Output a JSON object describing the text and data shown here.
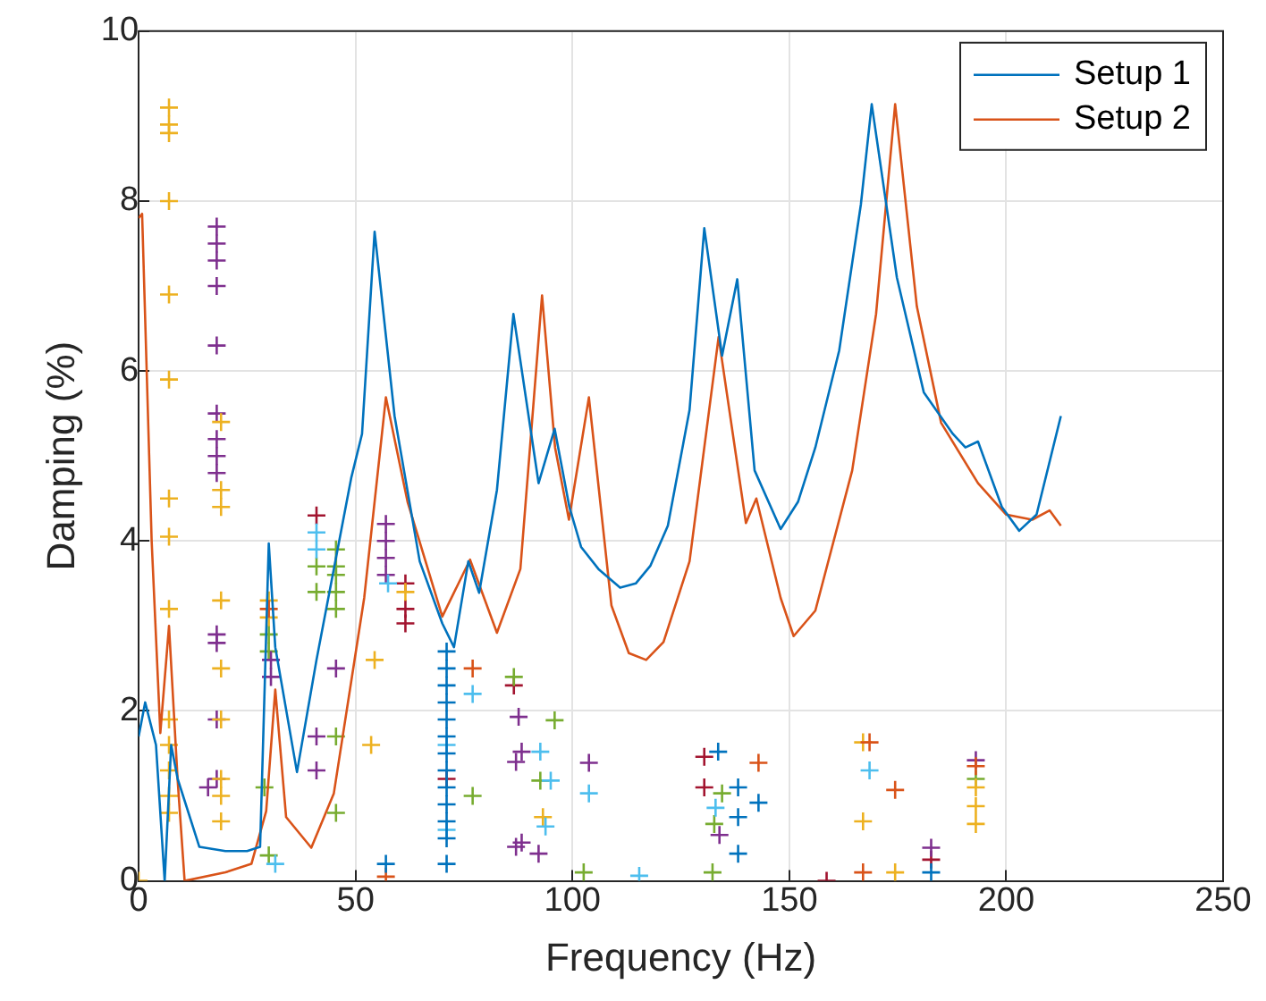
{
  "chart_data": {
    "type": "line",
    "xlabel": "Frequency (Hz)",
    "ylabel": "Damping (%)",
    "xlim": [
      0,
      250
    ],
    "xticks": [
      0,
      50,
      100,
      150,
      200,
      250
    ],
    "ylim": [
      0,
      10
    ],
    "yticks": [
      0,
      2,
      4,
      6,
      8,
      10
    ],
    "grid": true,
    "legend": "top right",
    "line_style": "solid",
    "series": [
      {
        "type": "scatter",
        "marker": "cross",
        "color": "#0072bd",
        "x": [
          71,
          71,
          71,
          71,
          71,
          71,
          71,
          71,
          71,
          71,
          71,
          71,
          71,
          57,
          133.6,
          138.2,
          138.2,
          138.2,
          142.9,
          182.7
        ],
        "values": [
          2.7,
          2.5,
          2.3,
          2.1,
          1.9,
          1.7,
          1.5,
          1.3,
          1.1,
          0.9,
          0.7,
          0.5,
          0.2,
          0.2,
          1.52,
          1.1,
          0.75,
          0.32,
          0.92,
          0.1
        ]
      },
      {
        "type": "scatter",
        "marker": "cross",
        "color": "#4dbeee",
        "x": [
          31.5,
          41,
          41,
          57.5,
          77,
          92.6,
          95,
          93.8,
          103.8,
          115.4,
          133,
          168.5,
          71,
          71
        ],
        "values": [
          0.2,
          4.1,
          3.9,
          3.5,
          2.2,
          1.52,
          1.18,
          0.64,
          1.03,
          0.06,
          0.86,
          1.3,
          1.6,
          0.6
        ]
      },
      {
        "type": "scatter",
        "marker": "cross",
        "color": "#d95319",
        "x": [
          57,
          77,
          30,
          142.9,
          167,
          168.5,
          174.4,
          193
        ],
        "values": [
          0.05,
          2.5,
          3.2,
          1.39,
          0.1,
          1.63,
          1.07,
          1.35
        ]
      },
      {
        "type": "scatter",
        "marker": "cross",
        "color": "#edb120",
        "x": [
          0,
          7,
          7,
          7,
          7,
          7,
          7,
          7,
          7,
          7,
          7,
          7,
          7,
          7,
          7,
          19,
          19,
          19,
          19,
          19,
          19,
          19,
          19,
          19,
          30,
          30,
          54.4,
          53.6,
          61.5,
          93.2,
          167,
          167,
          174.4,
          193,
          193,
          193
        ],
        "values": [
          0,
          9.1,
          8.9,
          8.8,
          8,
          6.9,
          5.9,
          4.5,
          4.05,
          3.2,
          1.9,
          1.6,
          1.3,
          1,
          0.8,
          5.4,
          4.6,
          4.4,
          3.3,
          2.5,
          1.9,
          1.2,
          1,
          0.7,
          3.3,
          3.1,
          2.6,
          1.6,
          3.4,
          0.75,
          1.63,
          0.7,
          0.1,
          0.88,
          0.67,
          1.1
        ]
      },
      {
        "type": "scatter",
        "marker": "cross",
        "color": "#7e2f8e",
        "x": [
          18,
          18,
          18,
          18,
          18,
          18,
          18,
          18,
          18,
          18,
          18,
          18,
          18,
          16,
          30.5,
          30.5,
          45.5,
          41,
          41,
          57,
          57,
          57,
          57,
          87,
          87,
          87.6,
          88.3,
          88.3,
          92.2,
          103.8,
          133.9,
          182.7,
          193
        ],
        "values": [
          7.7,
          7.5,
          7.3,
          7,
          6.3,
          5.5,
          5.2,
          5,
          4.8,
          2.9,
          2.8,
          1.9,
          1.2,
          1.1,
          2.6,
          2.4,
          2.5,
          1.7,
          1.3,
          4.2,
          4,
          3.8,
          3.6,
          1.4,
          0.4,
          1.93,
          1.52,
          0.45,
          0.32,
          1.39,
          0.54,
          0.39,
          1.42
        ]
      },
      {
        "type": "scatter",
        "marker": "cross",
        "color": "#77ac30",
        "x": [
          30,
          30,
          29,
          30,
          41,
          41,
          45.5,
          45.5,
          45.5,
          45.5,
          45.5,
          45.5,
          45.5,
          77,
          86.5,
          95.9,
          92.6,
          102.6,
          134.5,
          132.7,
          132.3,
          193
        ],
        "values": [
          2.9,
          2.7,
          1.1,
          0.3,
          3.7,
          3.4,
          3.9,
          3.7,
          3.6,
          3.4,
          3.2,
          1.7,
          0.8,
          1,
          2.4,
          1.89,
          1.18,
          0.1,
          1.03,
          0.67,
          0.1,
          1.2
        ]
      },
      {
        "type": "scatter",
        "marker": "cross",
        "color": "#a2142f",
        "x": [
          41,
          61.5,
          61.5,
          61.5,
          71,
          86.5,
          130.4,
          130.4,
          158.6,
          182.7
        ],
        "values": [
          4.3,
          3.5,
          3.2,
          3.03,
          1.2,
          2.3,
          1.46,
          1.1,
          0,
          0.25
        ]
      },
      {
        "name": "Setup 1",
        "marker": "none",
        "color": "#0072bd",
        "x": [
          0,
          1.5,
          4,
          6,
          7.5,
          9,
          14,
          20,
          25,
          28,
          30,
          31.5,
          36.5,
          41,
          49,
          51.5,
          54.4,
          59,
          64.8,
          70,
          72.7,
          76,
          78.5,
          82.6,
          86.4,
          92.2,
          95.9,
          99.3,
          102,
          106,
          111,
          114.6,
          118,
          122,
          127,
          130.4,
          134.5,
          138,
          142,
          148,
          152,
          156,
          161.5,
          166.5,
          169,
          174.8,
          181,
          187.7,
          190.6,
          193.5,
          199,
          203,
          207,
          212.6
        ],
        "values": [
          1.7,
          2.1,
          1.6,
          0,
          1.6,
          1.2,
          0.4,
          0.35,
          0.35,
          0.4,
          3.97,
          2.75,
          1.28,
          2.6,
          4.74,
          5.26,
          7.64,
          5.47,
          3.76,
          3.03,
          2.75,
          3.76,
          3.39,
          4.6,
          6.67,
          4.68,
          5.32,
          4.4,
          3.93,
          3.67,
          3.45,
          3.5,
          3.71,
          4.18,
          5.54,
          7.68,
          6.18,
          7.08,
          4.83,
          4.14,
          4.46,
          5.1,
          6.24,
          7.96,
          9.14,
          7.1,
          5.75,
          5.26,
          5.1,
          5.17,
          4.4,
          4.12,
          4.31,
          5.47
        ]
      },
      {
        "name": "Setup 2",
        "marker": "none",
        "color": "#d95319",
        "x": [
          0,
          0.8,
          3,
          5,
          7,
          9,
          10.6,
          20,
          26,
          29.4,
          31.5,
          34,
          39.8,
          45,
          52,
          57,
          62,
          70,
          76.4,
          82.6,
          88,
          93,
          96,
          99.2,
          103.8,
          109,
          113,
          117,
          121,
          127,
          133.7,
          140,
          142.4,
          148,
          151,
          156,
          164.5,
          170,
          174.4,
          179.4,
          185,
          193.5,
          200,
          206,
          210,
          212.6
        ],
        "values": [
          7.8,
          7.85,
          4,
          1.74,
          3,
          1.18,
          0,
          0.1,
          0.2,
          0.82,
          2.25,
          0.75,
          0.39,
          1.03,
          3.33,
          5.69,
          4.46,
          3.11,
          3.78,
          2.92,
          3.67,
          6.89,
          5.1,
          4.25,
          5.69,
          3.24,
          2.68,
          2.6,
          2.81,
          3.76,
          6.4,
          4.21,
          4.5,
          3.33,
          2.88,
          3.18,
          4.83,
          6.67,
          9.14,
          6.76,
          5.39,
          4.68,
          4.31,
          4.25,
          4.36,
          4.18
        ]
      }
    ]
  }
}
